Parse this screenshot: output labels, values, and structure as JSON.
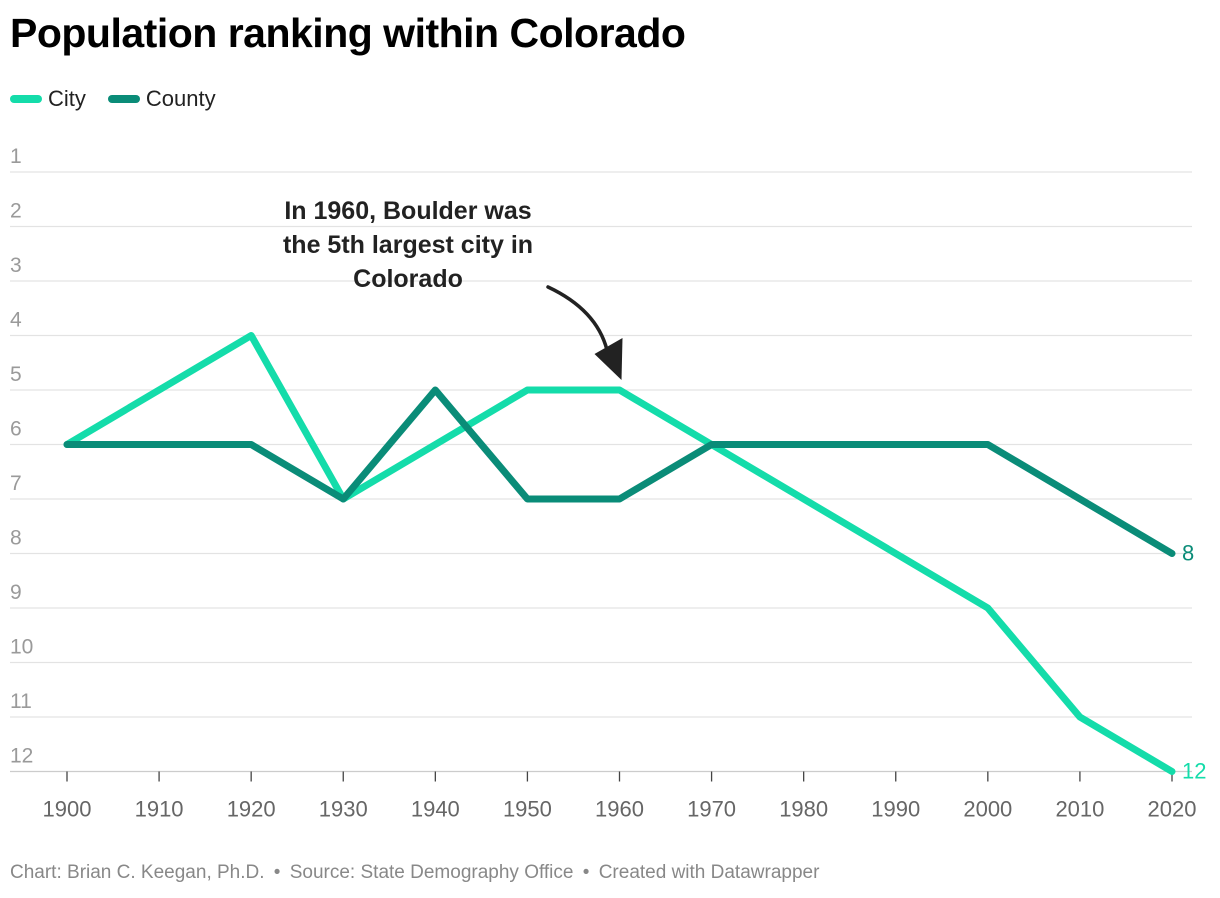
{
  "chart_data": {
    "type": "line",
    "title": "Population ranking within Colorado",
    "x": [
      1900,
      1910,
      1920,
      1930,
      1940,
      1950,
      1960,
      1970,
      1980,
      1990,
      2000,
      2010,
      2020
    ],
    "x_ticks": [
      1900,
      1910,
      1920,
      1930,
      1940,
      1950,
      1960,
      1970,
      1980,
      1990,
      2000,
      2010,
      2020
    ],
    "y_ticks": [
      1,
      2,
      3,
      4,
      5,
      6,
      7,
      8,
      9,
      10,
      11,
      12
    ],
    "ylim": [
      1,
      12
    ],
    "y_inverted": true,
    "xlabel": "",
    "ylabel": "",
    "grid": true,
    "legend_position": "top-left",
    "series": [
      {
        "name": "City",
        "color": "#14dcaa",
        "x": [
          1900,
          1920,
          1930,
          1950,
          1960,
          2000,
          2010,
          2020
        ],
        "values": [
          6,
          4,
          7,
          5,
          5,
          9,
          11,
          12
        ],
        "end_label": "12"
      },
      {
        "name": "County",
        "color": "#0a8c78",
        "x": [
          1900,
          1920,
          1930,
          1940,
          1950,
          1960,
          1970,
          2000,
          2020
        ],
        "values": [
          6,
          6,
          7,
          5,
          7,
          7,
          6,
          6,
          8
        ],
        "end_label": "8"
      }
    ],
    "annotation": {
      "lines": [
        "In 1960, Boulder was",
        "the 5th largest city in",
        "Colorado"
      ],
      "x": 1960,
      "y": 5
    }
  },
  "footer": {
    "chart_credit": "Chart: Brian C. Keegan, Ph.D.",
    "separator": "•",
    "source": "Source: State Demography Office",
    "created": "Created with Datawrapper"
  }
}
